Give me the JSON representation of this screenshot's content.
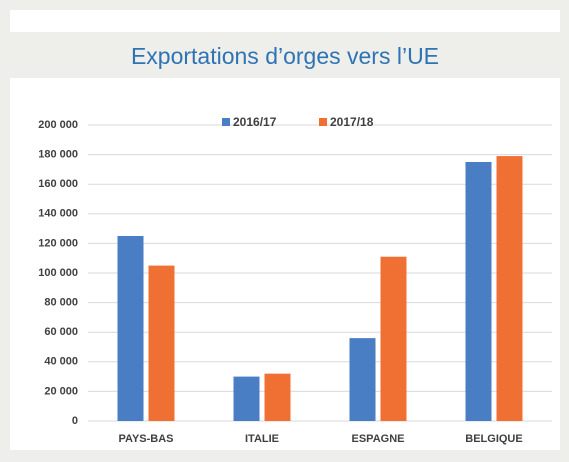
{
  "chart_data": {
    "type": "bar",
    "title": "Exportations d’orges vers l’UE",
    "categories": [
      "PAYS-BAS",
      "ITALIE",
      "ESPAGNE",
      "BELGIQUE"
    ],
    "series": [
      {
        "name": "2016/17",
        "color": "#4a7ec4",
        "values": [
          125000,
          30000,
          56000,
          175000
        ]
      },
      {
        "name": "2017/18",
        "color": "#f07033",
        "values": [
          105000,
          32000,
          111000,
          179000
        ]
      }
    ],
    "ylim": [
      0,
      200000
    ],
    "yticks": [
      0,
      {
        "value": 20000,
        "label": "20 000"
      },
      {
        "value": 40000,
        "label": "40 000"
      },
      {
        "value": 60000,
        "label": "60 000"
      },
      {
        "value": 80000,
        "label": "80 000"
      },
      {
        "value": 100000,
        "label": "100 000"
      },
      {
        "value": 120000,
        "label": "120 000"
      },
      {
        "value": 140000,
        "label": "140 000"
      },
      {
        "value": 160000,
        "label": "160 000"
      },
      {
        "value": 180000,
        "label": "180 000"
      },
      {
        "value": 200000,
        "label": "200 000"
      }
    ],
    "grid": true,
    "legend": "top"
  }
}
